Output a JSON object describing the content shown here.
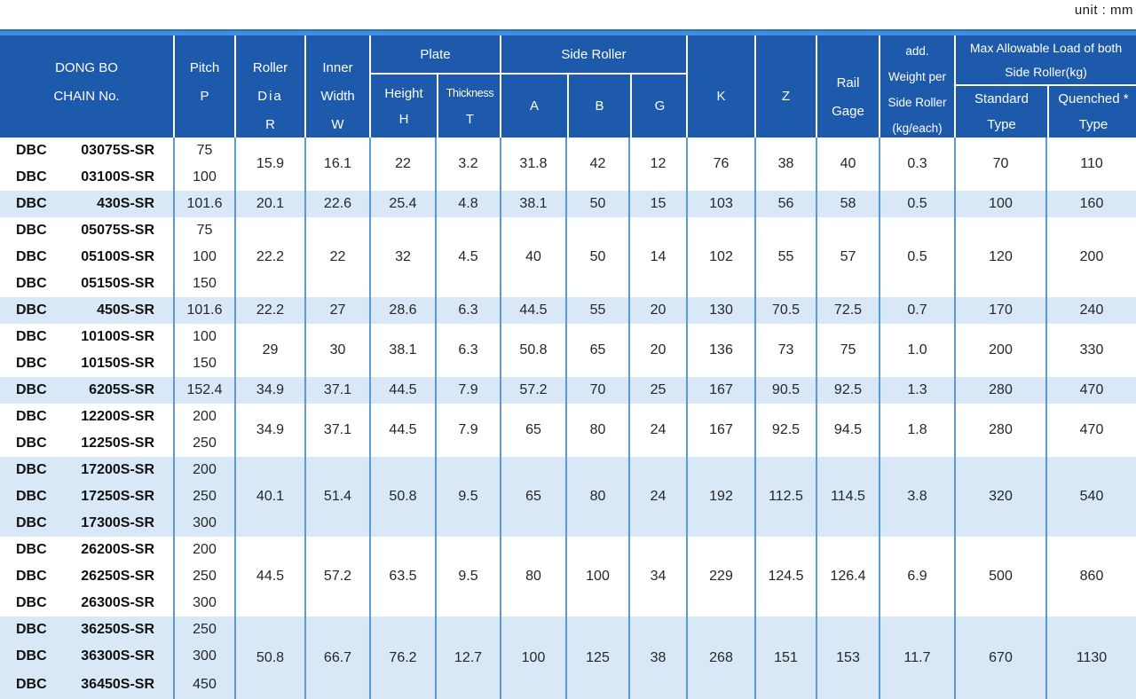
{
  "unit_label": "unit : mm",
  "colors": {
    "header_bg": "#1d5aab",
    "header_strip": "#3d8ee0",
    "strip_edge": "#2a70c2",
    "grid_line": "#5b9bd5",
    "row_highlight": "#d9e8f7",
    "header_text": "#ffffff",
    "body_text": "#262626"
  },
  "header": {
    "chain_no": [
      "DONG BO",
      "CHAIN No."
    ],
    "pitch": [
      "Pitch",
      "P"
    ],
    "roller_dia": [
      "Roller",
      "Dia",
      "R"
    ],
    "inner_width": [
      "Inner",
      "Width",
      "W"
    ],
    "plate": "Plate",
    "height": [
      "Height",
      "H"
    ],
    "thickness": [
      "Thickness",
      "T"
    ],
    "side_roller": "Side Roller",
    "a": "A",
    "b": "B",
    "g": "G",
    "k": "K",
    "z": "Z",
    "rail_gage": [
      "Rail",
      "Gage"
    ],
    "add_weight": [
      "add.",
      "Weight per",
      "Side Roller",
      "(kg/each)"
    ],
    "max_load": [
      "Max Allowable Load of both",
      "Side Roller(kg)"
    ],
    "standard": [
      "Standard",
      "Type"
    ],
    "quenched": [
      "Quenched *",
      "Type"
    ]
  },
  "value_keys": [
    "roller_dia",
    "inner_width",
    "height",
    "thickness",
    "a",
    "b",
    "g",
    "k",
    "z",
    "rail_gage",
    "add_weight",
    "standard",
    "quenched"
  ],
  "groups": [
    {
      "highlight": false,
      "rows": [
        {
          "prefix": "DBC",
          "model": "03075S-SR",
          "pitch": "75"
        },
        {
          "prefix": "DBC",
          "model": "03100S-SR",
          "pitch": "100"
        }
      ],
      "values": {
        "roller_dia": "15.9",
        "inner_width": "16.1",
        "height": "22",
        "thickness": "3.2",
        "a": "31.8",
        "b": "42",
        "g": "12",
        "k": "76",
        "z": "38",
        "rail_gage": "40",
        "add_weight": "0.3",
        "standard": "70",
        "quenched": "110"
      }
    },
    {
      "highlight": true,
      "rows": [
        {
          "prefix": "DBC",
          "model": "430S-SR",
          "pitch": "101.6"
        }
      ],
      "values": {
        "roller_dia": "20.1",
        "inner_width": "22.6",
        "height": "25.4",
        "thickness": "4.8",
        "a": "38.1",
        "b": "50",
        "g": "15",
        "k": "103",
        "z": "56",
        "rail_gage": "58",
        "add_weight": "0.5",
        "standard": "100",
        "quenched": "160"
      }
    },
    {
      "highlight": false,
      "rows": [
        {
          "prefix": "DBC",
          "model": "05075S-SR",
          "pitch": "75"
        },
        {
          "prefix": "DBC",
          "model": "05100S-SR",
          "pitch": "100"
        },
        {
          "prefix": "DBC",
          "model": "05150S-SR",
          "pitch": "150"
        }
      ],
      "values": {
        "roller_dia": "22.2",
        "inner_width": "22",
        "height": "32",
        "thickness": "4.5",
        "a": "40",
        "b": "50",
        "g": "14",
        "k": "102",
        "z": "55",
        "rail_gage": "57",
        "add_weight": "0.5",
        "standard": "120",
        "quenched": "200"
      }
    },
    {
      "highlight": true,
      "rows": [
        {
          "prefix": "DBC",
          "model": "450S-SR",
          "pitch": "101.6"
        }
      ],
      "values": {
        "roller_dia": "22.2",
        "inner_width": "27",
        "height": "28.6",
        "thickness": "6.3",
        "a": "44.5",
        "b": "55",
        "g": "20",
        "k": "130",
        "z": "70.5",
        "rail_gage": "72.5",
        "add_weight": "0.7",
        "standard": "170",
        "quenched": "240"
      }
    },
    {
      "highlight": false,
      "rows": [
        {
          "prefix": "DBC",
          "model": "10100S-SR",
          "pitch": "100"
        },
        {
          "prefix": "DBC",
          "model": "10150S-SR",
          "pitch": "150"
        }
      ],
      "values": {
        "roller_dia": "29",
        "inner_width": "30",
        "height": "38.1",
        "thickness": "6.3",
        "a": "50.8",
        "b": "65",
        "g": "20",
        "k": "136",
        "z": "73",
        "rail_gage": "75",
        "add_weight": "1.0",
        "standard": "200",
        "quenched": "330"
      }
    },
    {
      "highlight": true,
      "rows": [
        {
          "prefix": "DBC",
          "model": "6205S-SR",
          "pitch": "152.4"
        }
      ],
      "values": {
        "roller_dia": "34.9",
        "inner_width": "37.1",
        "height": "44.5",
        "thickness": "7.9",
        "a": "57.2",
        "b": "70",
        "g": "25",
        "k": "167",
        "z": "90.5",
        "rail_gage": "92.5",
        "add_weight": "1.3",
        "standard": "280",
        "quenched": "470"
      }
    },
    {
      "highlight": false,
      "rows": [
        {
          "prefix": "DBC",
          "model": "12200S-SR",
          "pitch": "200"
        },
        {
          "prefix": "DBC",
          "model": "12250S-SR",
          "pitch": "250"
        }
      ],
      "values": {
        "roller_dia": "34.9",
        "inner_width": "37.1",
        "height": "44.5",
        "thickness": "7.9",
        "a": "65",
        "b": "80",
        "g": "24",
        "k": "167",
        "z": "92.5",
        "rail_gage": "94.5",
        "add_weight": "1.8",
        "standard": "280",
        "quenched": "470"
      }
    },
    {
      "highlight": true,
      "rows": [
        {
          "prefix": "DBC",
          "model": "17200S-SR",
          "pitch": "200"
        },
        {
          "prefix": "DBC",
          "model": "17250S-SR",
          "pitch": "250"
        },
        {
          "prefix": "DBC",
          "model": "17300S-SR",
          "pitch": "300"
        }
      ],
      "values": {
        "roller_dia": "40.1",
        "inner_width": "51.4",
        "height": "50.8",
        "thickness": "9.5",
        "a": "65",
        "b": "80",
        "g": "24",
        "k": "192",
        "z": "112.5",
        "rail_gage": "114.5",
        "add_weight": "3.8",
        "standard": "320",
        "quenched": "540"
      }
    },
    {
      "highlight": false,
      "rows": [
        {
          "prefix": "DBC",
          "model": "26200S-SR",
          "pitch": "200"
        },
        {
          "prefix": "DBC",
          "model": "26250S-SR",
          "pitch": "250"
        },
        {
          "prefix": "DBC",
          "model": "26300S-SR",
          "pitch": "300"
        }
      ],
      "values": {
        "roller_dia": "44.5",
        "inner_width": "57.2",
        "height": "63.5",
        "thickness": "9.5",
        "a": "80",
        "b": "100",
        "g": "34",
        "k": "229",
        "z": "124.5",
        "rail_gage": "126.4",
        "add_weight": "6.9",
        "standard": "500",
        "quenched": "860"
      }
    },
    {
      "highlight": true,
      "rows": [
        {
          "prefix": "DBC",
          "model": "36250S-SR",
          "pitch": "250"
        },
        {
          "prefix": "DBC",
          "model": "36300S-SR",
          "pitch": "300"
        },
        {
          "prefix": "DBC",
          "model": "36450S-SR",
          "pitch": "450"
        }
      ],
      "values": {
        "roller_dia": "50.8",
        "inner_width": "66.7",
        "height": "76.2",
        "thickness": "12.7",
        "a": "100",
        "b": "125",
        "g": "38",
        "k": "268",
        "z": "151",
        "rail_gage": "153",
        "add_weight": "11.7",
        "standard": "670",
        "quenched": "1130"
      }
    }
  ]
}
